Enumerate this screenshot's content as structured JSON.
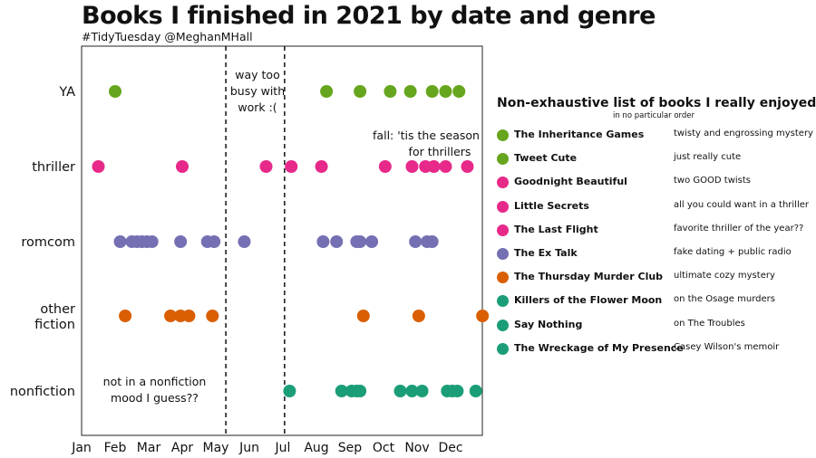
{
  "title": "Books I finished in 2021 by date and genre",
  "subtitle": "#TidyTuesday @MeghanMHall",
  "chart_data": {
    "type": "scatter",
    "x_axis": {
      "ticks": [
        "Jan",
        "Feb",
        "Mar",
        "Apr",
        "May",
        "Jun",
        "Jul",
        "Aug",
        "Sep",
        "Oct",
        "Nov",
        "Dec"
      ],
      "range_months": [
        1,
        12.9
      ]
    },
    "y_axis": {
      "categories": [
        "YA",
        "thriller",
        "romcom",
        "other fiction",
        "nonfiction"
      ]
    },
    "vertical_lines_month": [
      5.3,
      7.05
    ],
    "series": [
      {
        "name": "YA",
        "color": "#66a61e",
        "x": [
          2.0,
          8.3,
          9.3,
          10.2,
          10.8,
          11.45,
          11.85,
          12.25
        ]
      },
      {
        "name": "thriller",
        "color": "#e7298a",
        "x": [
          1.5,
          4.0,
          6.5,
          7.25,
          8.15,
          10.05,
          10.85,
          11.25,
          11.5,
          11.85,
          12.5
        ]
      },
      {
        "name": "romcom",
        "color": "#7570b3",
        "x": [
          2.15,
          2.5,
          2.65,
          2.8,
          2.95,
          3.1,
          3.95,
          4.75,
          4.95,
          5.85,
          8.2,
          8.6,
          9.2,
          9.3,
          9.65,
          10.95,
          11.3,
          11.45
        ]
      },
      {
        "name": "other fiction",
        "color": "#d95f02",
        "x": [
          2.3,
          3.65,
          3.95,
          4.2,
          4.9,
          9.4,
          11.05,
          12.95
        ]
      },
      {
        "name": "nonfiction",
        "color": "#1b9e77",
        "x": [
          7.2,
          8.75,
          9.05,
          9.2,
          9.3,
          10.5,
          10.85,
          11.15,
          11.9,
          12.05,
          12.2,
          12.75
        ]
      }
    ],
    "annotations": [
      {
        "lines": [
          "way too",
          "busy with",
          "work :("
        ]
      },
      {
        "lines": [
          "fall: 'tis the season",
          "for thrillers"
        ]
      },
      {
        "lines": [
          "not in a nonfiction",
          "mood I guess??"
        ]
      }
    ],
    "legend": {
      "title": "Non-exhaustive list of books I really enjoyed",
      "subtitle": "in no particular order",
      "placement": "right",
      "items": [
        {
          "book": "The Inheritance Games",
          "note": "twisty and engrossing mystery",
          "color": "#66a61e"
        },
        {
          "book": "Tweet Cute",
          "note": "just really cute",
          "color": "#66a61e"
        },
        {
          "book": "Goodnight Beautiful",
          "note": "two GOOD twists",
          "color": "#e7298a"
        },
        {
          "book": "Little Secrets",
          "note": "all you could want in a thriller",
          "color": "#e7298a"
        },
        {
          "book": "The Last Flight",
          "note": "favorite thriller of the year??",
          "color": "#e7298a"
        },
        {
          "book": "The Ex Talk",
          "note": "fake dating + public radio",
          "color": "#7570b3"
        },
        {
          "book": "The Thursday Murder Club",
          "note": "ultimate cozy mystery",
          "color": "#d95f02"
        },
        {
          "book": "Killers of the Flower Moon",
          "note": "on the Osage murders",
          "color": "#1b9e77"
        },
        {
          "book": "Say Nothing",
          "note": "on The Troubles",
          "color": "#1b9e77"
        },
        {
          "book": "The Wreckage of My Presence",
          "note": "Casey Wilson's memoir",
          "color": "#1b9e77"
        }
      ]
    }
  }
}
